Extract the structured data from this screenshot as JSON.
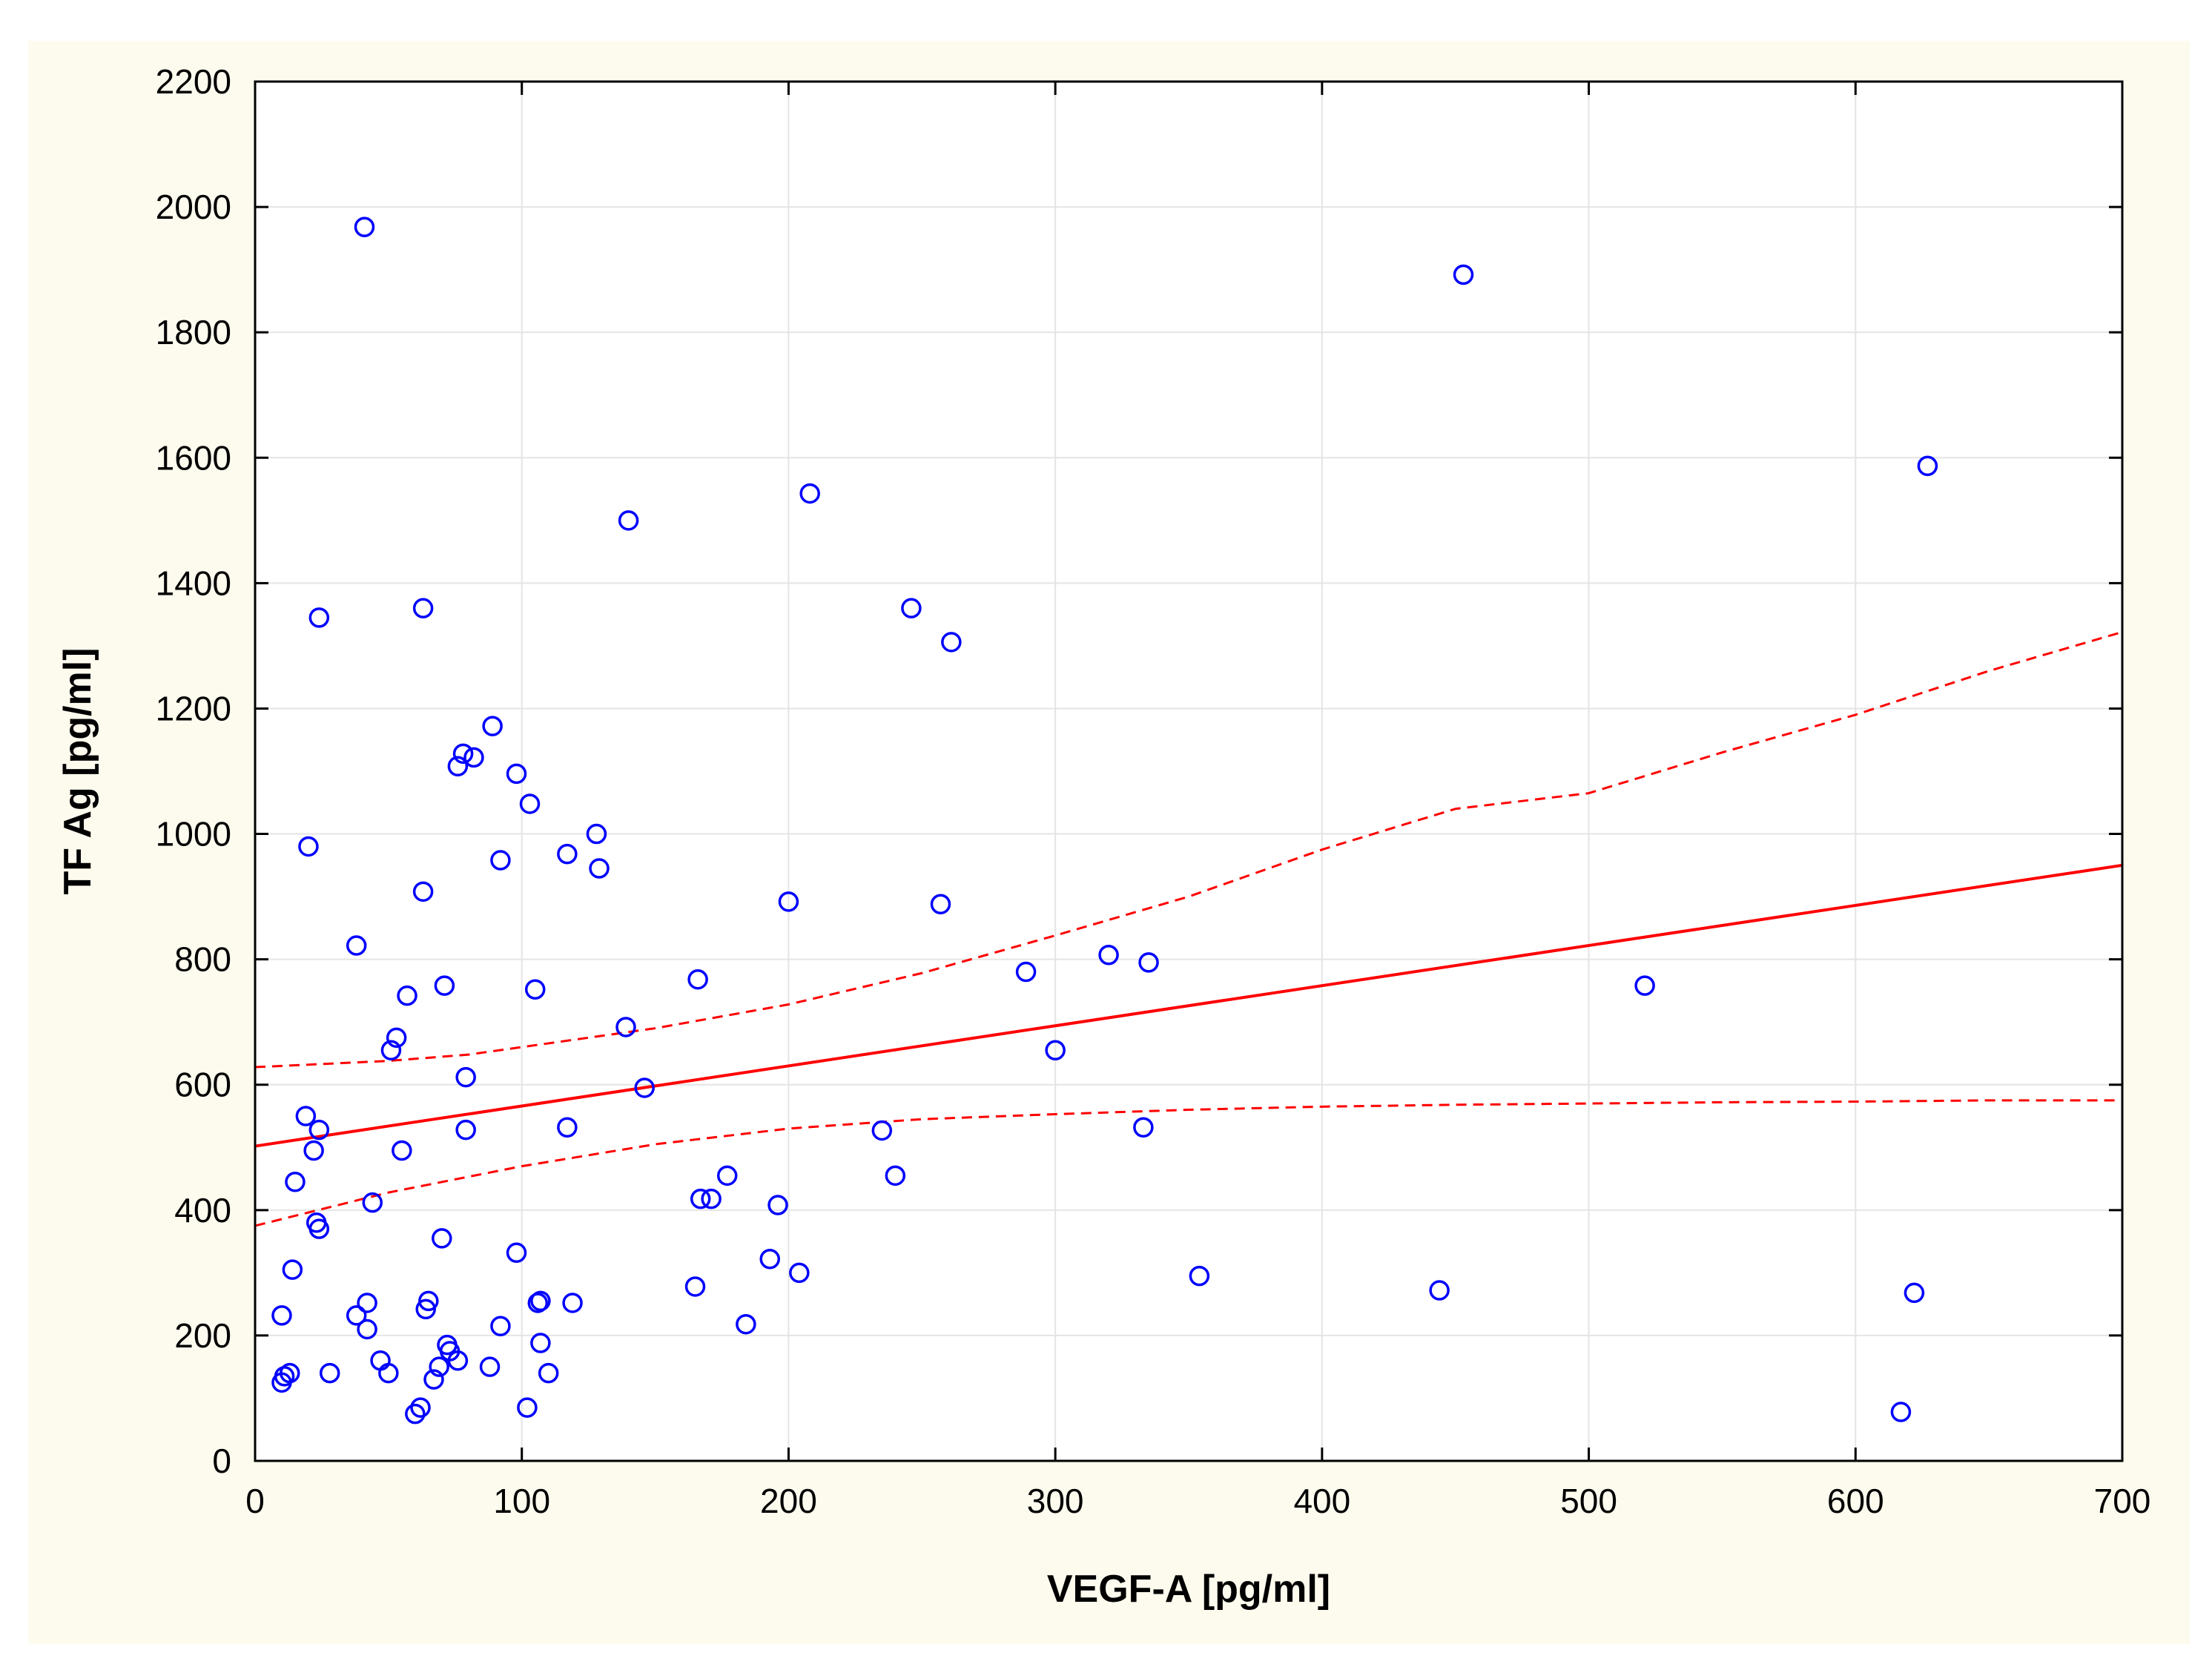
{
  "chart_data": {
    "type": "scatter",
    "title": "",
    "xlabel": "VEGF-A [pg/ml]",
    "ylabel": "TF Ag [pg/ml]",
    "xlim": [
      0,
      700
    ],
    "ylim": [
      0,
      2200
    ],
    "xticks": [
      0,
      100,
      200,
      300,
      400,
      500,
      600,
      700
    ],
    "yticks": [
      0,
      200,
      400,
      600,
      800,
      1000,
      1200,
      1400,
      1600,
      1800,
      2000,
      2200
    ],
    "grid": true,
    "colors": {
      "points": "#0000ff",
      "fit": "#ff0000",
      "grid": "#e4e4e4"
    },
    "points": [
      {
        "x": 10,
        "y": 125
      },
      {
        "x": 11,
        "y": 135
      },
      {
        "x": 13,
        "y": 140
      },
      {
        "x": 10,
        "y": 232
      },
      {
        "x": 14,
        "y": 305
      },
      {
        "x": 15,
        "y": 445
      },
      {
        "x": 19,
        "y": 550
      },
      {
        "x": 20,
        "y": 980
      },
      {
        "x": 22,
        "y": 495
      },
      {
        "x": 23,
        "y": 380
      },
      {
        "x": 24,
        "y": 370
      },
      {
        "x": 24,
        "y": 528
      },
      {
        "x": 24,
        "y": 1345
      },
      {
        "x": 28,
        "y": 140
      },
      {
        "x": 38,
        "y": 232
      },
      {
        "x": 38,
        "y": 822
      },
      {
        "x": 41,
        "y": 1968
      },
      {
        "x": 42,
        "y": 210
      },
      {
        "x": 42,
        "y": 252
      },
      {
        "x": 44,
        "y": 412
      },
      {
        "x": 47,
        "y": 160
      },
      {
        "x": 50,
        "y": 140
      },
      {
        "x": 51,
        "y": 655
      },
      {
        "x": 53,
        "y": 675
      },
      {
        "x": 55,
        "y": 495
      },
      {
        "x": 57,
        "y": 742
      },
      {
        "x": 60,
        "y": 75
      },
      {
        "x": 62,
        "y": 85
      },
      {
        "x": 63,
        "y": 908
      },
      {
        "x": 63,
        "y": 1360
      },
      {
        "x": 64,
        "y": 242
      },
      {
        "x": 65,
        "y": 255
      },
      {
        "x": 67,
        "y": 130
      },
      {
        "x": 69,
        "y": 150
      },
      {
        "x": 70,
        "y": 355
      },
      {
        "x": 71,
        "y": 758
      },
      {
        "x": 72,
        "y": 185
      },
      {
        "x": 73,
        "y": 175
      },
      {
        "x": 76,
        "y": 160
      },
      {
        "x": 76,
        "y": 1108
      },
      {
        "x": 78,
        "y": 1128
      },
      {
        "x": 79,
        "y": 612
      },
      {
        "x": 79,
        "y": 528
      },
      {
        "x": 82,
        "y": 1122
      },
      {
        "x": 88,
        "y": 150
      },
      {
        "x": 89,
        "y": 1172
      },
      {
        "x": 92,
        "y": 215
      },
      {
        "x": 92,
        "y": 958
      },
      {
        "x": 98,
        "y": 332
      },
      {
        "x": 98,
        "y": 1096
      },
      {
        "x": 102,
        "y": 85
      },
      {
        "x": 103,
        "y": 1048
      },
      {
        "x": 105,
        "y": 752
      },
      {
        "x": 106,
        "y": 252
      },
      {
        "x": 107,
        "y": 255
      },
      {
        "x": 107,
        "y": 188
      },
      {
        "x": 110,
        "y": 140
      },
      {
        "x": 117,
        "y": 532
      },
      {
        "x": 117,
        "y": 968
      },
      {
        "x": 119,
        "y": 252
      },
      {
        "x": 128,
        "y": 1000
      },
      {
        "x": 129,
        "y": 945
      },
      {
        "x": 139,
        "y": 692
      },
      {
        "x": 140,
        "y": 1500
      },
      {
        "x": 146,
        "y": 595
      },
      {
        "x": 165,
        "y": 278
      },
      {
        "x": 166,
        "y": 768
      },
      {
        "x": 167,
        "y": 418
      },
      {
        "x": 171,
        "y": 418
      },
      {
        "x": 177,
        "y": 455
      },
      {
        "x": 184,
        "y": 218
      },
      {
        "x": 193,
        "y": 322
      },
      {
        "x": 196,
        "y": 408
      },
      {
        "x": 200,
        "y": 892
      },
      {
        "x": 204,
        "y": 300
      },
      {
        "x": 208,
        "y": 1543
      },
      {
        "x": 235,
        "y": 527
      },
      {
        "x": 240,
        "y": 455
      },
      {
        "x": 246,
        "y": 1360
      },
      {
        "x": 257,
        "y": 888
      },
      {
        "x": 261,
        "y": 1306
      },
      {
        "x": 289,
        "y": 780
      },
      {
        "x": 300,
        "y": 655
      },
      {
        "x": 320,
        "y": 807
      },
      {
        "x": 333,
        "y": 532
      },
      {
        "x": 335,
        "y": 795
      },
      {
        "x": 354,
        "y": 295
      },
      {
        "x": 444,
        "y": 272
      },
      {
        "x": 453,
        "y": 1892
      },
      {
        "x": 521,
        "y": 758
      },
      {
        "x": 617,
        "y": 78
      },
      {
        "x": 622,
        "y": 268
      },
      {
        "x": 627,
        "y": 1587
      }
    ],
    "fit_line": {
      "intercept": 502,
      "slope": 0.64
    },
    "ci_upper": [
      {
        "x": 0,
        "y": 628
      },
      {
        "x": 50,
        "y": 638
      },
      {
        "x": 80,
        "y": 648
      },
      {
        "x": 100,
        "y": 660
      },
      {
        "x": 150,
        "y": 690
      },
      {
        "x": 200,
        "y": 728
      },
      {
        "x": 250,
        "y": 778
      },
      {
        "x": 300,
        "y": 838
      },
      {
        "x": 350,
        "y": 900
      },
      {
        "x": 400,
        "y": 975
      },
      {
        "x": 450,
        "y": 1040
      },
      {
        "x": 500,
        "y": 1065
      },
      {
        "x": 550,
        "y": 1130
      },
      {
        "x": 600,
        "y": 1190
      },
      {
        "x": 650,
        "y": 1260
      },
      {
        "x": 700,
        "y": 1322
      }
    ],
    "ci_lower": [
      {
        "x": 0,
        "y": 375
      },
      {
        "x": 50,
        "y": 428
      },
      {
        "x": 100,
        "y": 470
      },
      {
        "x": 150,
        "y": 505
      },
      {
        "x": 200,
        "y": 530
      },
      {
        "x": 250,
        "y": 545
      },
      {
        "x": 300,
        "y": 553
      },
      {
        "x": 350,
        "y": 560
      },
      {
        "x": 400,
        "y": 565
      },
      {
        "x": 450,
        "y": 568
      },
      {
        "x": 500,
        "y": 570
      },
      {
        "x": 550,
        "y": 572
      },
      {
        "x": 600,
        "y": 573
      },
      {
        "x": 650,
        "y": 575
      },
      {
        "x": 700,
        "y": 575
      }
    ]
  }
}
